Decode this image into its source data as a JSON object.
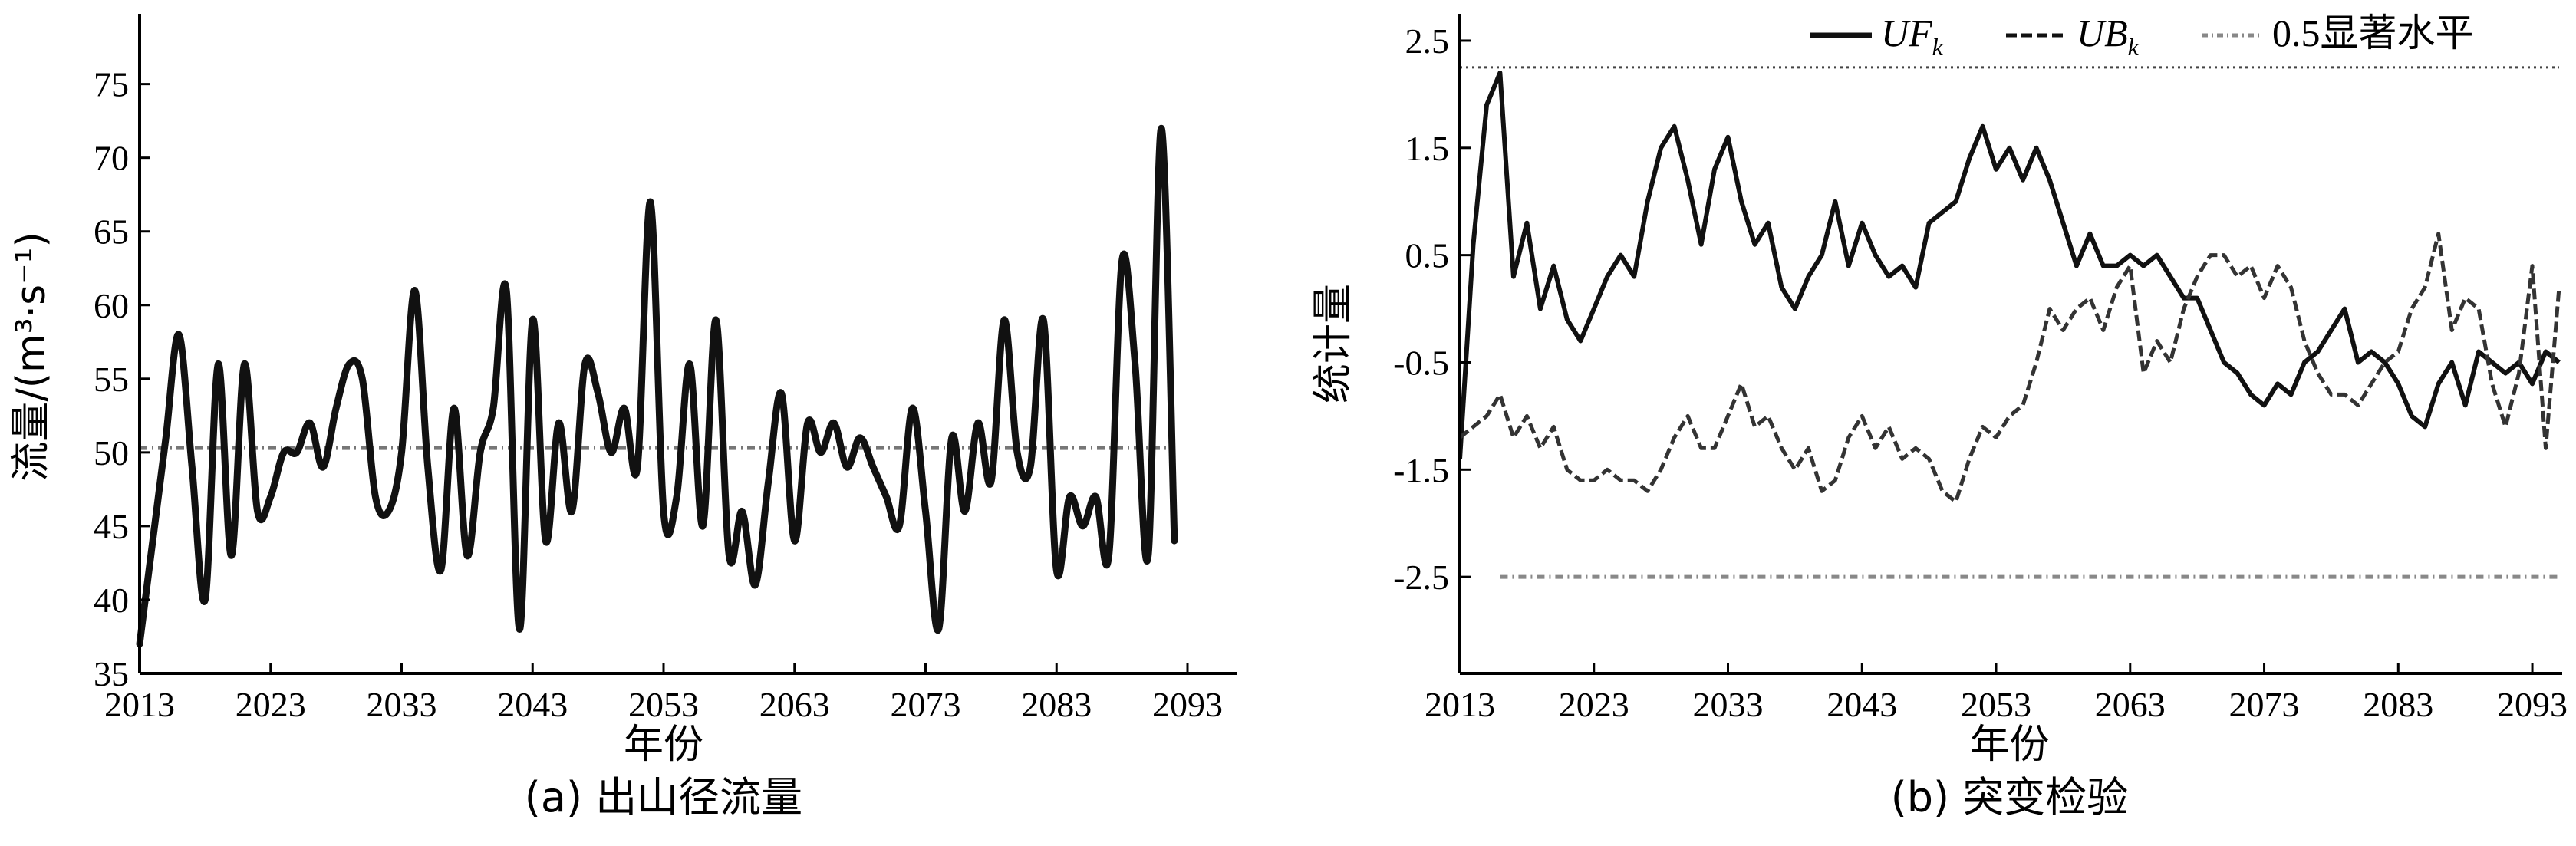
{
  "chart_data": [
    {
      "type": "line",
      "panel": "a",
      "caption": "(a) 出山径流量",
      "xlabel": "年份",
      "ylabel": "流量/(m³·s⁻¹)",
      "xlim": [
        2013,
        2093
      ],
      "ylim": [
        35,
        78
      ],
      "xticks": [
        2013,
        2023,
        2033,
        2043,
        2053,
        2063,
        2073,
        2083,
        2093
      ],
      "yticks": [
        35,
        40,
        45,
        50,
        55,
        60,
        65,
        70,
        75
      ],
      "mean_line": 50.3,
      "series": [
        {
          "x": [
            2013,
            2014,
            2015,
            2016,
            2017,
            2018,
            2019,
            2020,
            2021,
            2022,
            2023,
            2024,
            2025,
            2026,
            2027,
            2028,
            2029,
            2030,
            2031,
            2032,
            2033,
            2034,
            2035,
            2036,
            2037,
            2038,
            2039,
            2040,
            2041,
            2042,
            2043,
            2044,
            2045,
            2046,
            2047,
            2048,
            2049,
            2050,
            2051,
            2052,
            2053,
            2054,
            2055,
            2056,
            2057,
            2058,
            2059,
            2060,
            2061,
            2062,
            2063,
            2064,
            2065,
            2066,
            2067,
            2068,
            2069,
            2070,
            2071,
            2072,
            2073,
            2074,
            2075,
            2076,
            2077,
            2078,
            2079,
            2080,
            2081,
            2082,
            2083,
            2084,
            2085,
            2086,
            2087,
            2088,
            2089,
            2090,
            2091,
            2092
          ],
          "y": [
            37,
            44,
            51,
            58,
            49,
            40,
            56,
            43,
            56,
            46,
            47,
            50,
            50,
            52,
            49,
            53,
            56,
            55,
            47,
            46,
            50,
            61,
            49,
            42,
            53,
            43,
            50,
            53,
            61,
            38,
            59,
            44,
            52,
            46,
            56,
            54,
            50,
            53,
            49,
            67,
            46,
            47,
            56,
            45,
            59,
            43,
            46,
            41,
            48,
            54,
            44,
            52,
            50,
            52,
            49,
            51,
            49,
            47,
            45,
            53,
            46,
            38,
            51,
            46,
            52,
            48,
            59,
            50,
            49,
            59,
            42,
            47,
            45,
            47,
            43,
            63,
            56,
            43,
            72,
            44
          ]
        }
      ]
    },
    {
      "type": "line",
      "panel": "b",
      "caption": "(b) 突变检验",
      "xlabel": "年份",
      "ylabel": "统计量",
      "xlim": [
        2013,
        2095
      ],
      "ylim": [
        -3.4,
        2.75
      ],
      "xticks": [
        2013,
        2023,
        2033,
        2043,
        2053,
        2063,
        2073,
        2083,
        2093
      ],
      "yticks": [
        -2.5,
        -1.5,
        -0.5,
        0.5,
        1.5,
        2.5
      ],
      "threshold_upper": 2.25,
      "threshold_lower": -2.5,
      "legend": [
        {
          "name": "UF",
          "sub": "k",
          "style": "solid"
        },
        {
          "name": "UB",
          "sub": "k",
          "style": "dashed"
        },
        {
          "name": "0.5显著水平",
          "sub": "",
          "style": "dotted"
        }
      ],
      "series": [
        {
          "name": "UF_k",
          "x": [
            2013,
            2014,
            2015,
            2016,
            2017,
            2018,
            2019,
            2020,
            2021,
            2022,
            2023,
            2024,
            2025,
            2026,
            2027,
            2028,
            2029,
            2030,
            2031,
            2032,
            2033,
            2034,
            2035,
            2036,
            2037,
            2038,
            2039,
            2040,
            2041,
            2042,
            2043,
            2044,
            2045,
            2046,
            2047,
            2048,
            2049,
            2050,
            2051,
            2052,
            2053,
            2054,
            2055,
            2056,
            2057,
            2058,
            2059,
            2060,
            2061,
            2062,
            2063,
            2064,
            2065,
            2066,
            2067,
            2068,
            2069,
            2070,
            2071,
            2072,
            2073,
            2074,
            2075,
            2076,
            2077,
            2078,
            2079,
            2080,
            2081,
            2082,
            2083,
            2084,
            2085,
            2086,
            2087,
            2088,
            2089,
            2090,
            2091,
            2092,
            2093,
            2094,
            2095
          ],
          "y": [
            -1.4,
            0.6,
            1.9,
            2.2,
            0.3,
            0.8,
            0.0,
            0.4,
            -0.1,
            -0.3,
            0.0,
            0.3,
            0.5,
            0.3,
            1.0,
            1.5,
            1.7,
            1.2,
            0.6,
            1.3,
            1.6,
            1.0,
            0.6,
            0.8,
            0.2,
            0.0,
            0.3,
            0.5,
            1.0,
            0.4,
            0.8,
            0.5,
            0.3,
            0.4,
            0.2,
            0.8,
            0.9,
            1.0,
            1.4,
            1.7,
            1.3,
            1.5,
            1.2,
            1.5,
            1.2,
            0.8,
            0.4,
            0.7,
            0.4,
            0.4,
            0.5,
            0.4,
            0.5,
            0.3,
            0.1,
            0.1,
            -0.2,
            -0.5,
            -0.6,
            -0.8,
            -0.9,
            -0.7,
            -0.8,
            -0.5,
            -0.4,
            -0.2,
            0.0,
            -0.5,
            -0.4,
            -0.5,
            -0.7,
            -1.0,
            -1.1,
            -0.7,
            -0.5,
            -0.9,
            -0.4,
            -0.5,
            -0.6,
            -0.5,
            -0.7,
            -0.4,
            -0.5
          ]
        },
        {
          "name": "UB_k",
          "x": [
            2013,
            2014,
            2015,
            2016,
            2017,
            2018,
            2019,
            2020,
            2021,
            2022,
            2023,
            2024,
            2025,
            2026,
            2027,
            2028,
            2029,
            2030,
            2031,
            2032,
            2033,
            2034,
            2035,
            2036,
            2037,
            2038,
            2039,
            2040,
            2041,
            2042,
            2043,
            2044,
            2045,
            2046,
            2047,
            2048,
            2049,
            2050,
            2051,
            2052,
            2053,
            2054,
            2055,
            2056,
            2057,
            2058,
            2059,
            2060,
            2061,
            2062,
            2063,
            2064,
            2065,
            2066,
            2067,
            2068,
            2069,
            2070,
            2071,
            2072,
            2073,
            2074,
            2075,
            2076,
            2077,
            2078,
            2079,
            2080,
            2081,
            2082,
            2083,
            2084,
            2085,
            2086,
            2087,
            2088,
            2089,
            2090,
            2091,
            2092,
            2093,
            2094,
            2095
          ],
          "y": [
            -1.2,
            -1.1,
            -1.0,
            -0.8,
            -1.2,
            -1.0,
            -1.3,
            -1.1,
            -1.5,
            -1.6,
            -1.6,
            -1.5,
            -1.6,
            -1.6,
            -1.7,
            -1.5,
            -1.2,
            -1.0,
            -1.3,
            -1.3,
            -1.0,
            -0.7,
            -1.1,
            -1.0,
            -1.3,
            -1.5,
            -1.3,
            -1.7,
            -1.6,
            -1.2,
            -1.0,
            -1.3,
            -1.1,
            -1.4,
            -1.3,
            -1.4,
            -1.7,
            -1.8,
            -1.4,
            -1.1,
            -1.2,
            -1.0,
            -0.9,
            -0.5,
            0.0,
            -0.2,
            0.0,
            0.1,
            -0.2,
            0.2,
            0.4,
            -0.6,
            -0.3,
            -0.5,
            0.0,
            0.3,
            0.5,
            0.5,
            0.3,
            0.4,
            0.1,
            0.4,
            0.2,
            -0.3,
            -0.6,
            -0.8,
            -0.8,
            -0.9,
            -0.7,
            -0.5,
            -0.4,
            0.0,
            0.2,
            0.7,
            -0.2,
            0.1,
            0.0,
            -0.7,
            -1.1,
            -0.6,
            0.4,
            -1.3,
            0.2
          ]
        }
      ]
    }
  ]
}
